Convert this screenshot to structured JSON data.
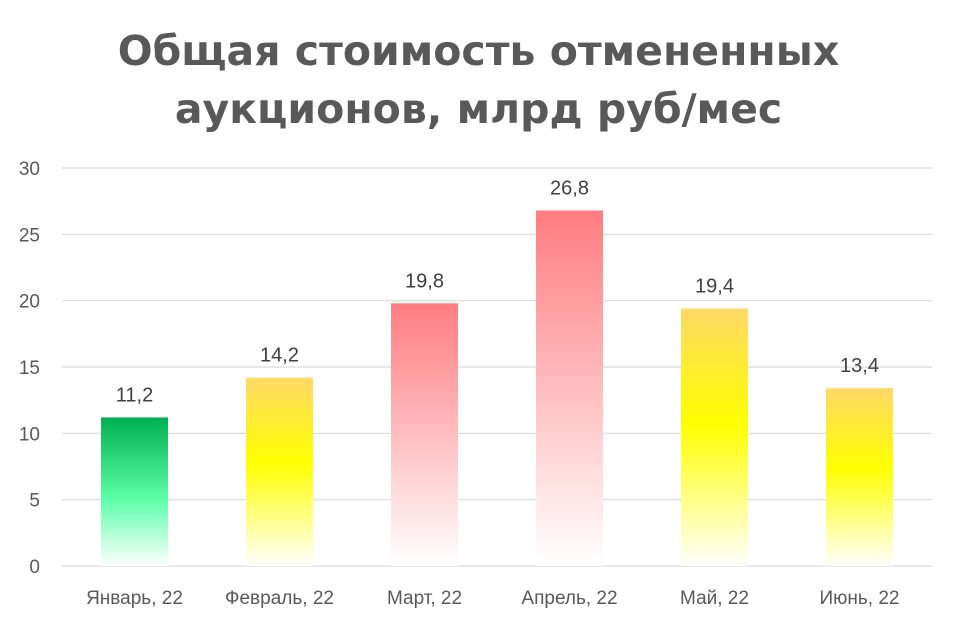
{
  "chart_data": {
    "type": "bar",
    "title_lines": [
      "Общая стоимость отмененных",
      "аукционов, млрд руб/мес"
    ],
    "categories": [
      "Январь, 22",
      "Февраль, 22",
      "Март, 22",
      "Апрель, 22",
      "Май, 22",
      "Июнь, 22"
    ],
    "values": [
      11.2,
      14.2,
      19.8,
      26.8,
      19.4,
      13.4
    ],
    "data_labels": [
      "11,2",
      "14,2",
      "19,8",
      "26,8",
      "19,4",
      "13,4"
    ],
    "ylim": [
      0,
      30
    ],
    "yticks": [
      0,
      5,
      10,
      15,
      20,
      25,
      30
    ],
    "ytick_labels": [
      "0",
      "5",
      "10",
      "15",
      "20",
      "25",
      "30"
    ],
    "grid": true,
    "legend": "none",
    "bar_colors": [
      "green",
      "yellow",
      "red",
      "red",
      "yellow",
      "yellow"
    ]
  },
  "colors": {
    "green_top": "#00b050",
    "green_mid": "#5cffa8",
    "yellow_top": "#ffd966",
    "yellow_mid": "#ffff00",
    "red_top": "#ff7c80",
    "grid": "#d9d9d9",
    "axis": "#d9d9d9",
    "text": "#595959"
  }
}
